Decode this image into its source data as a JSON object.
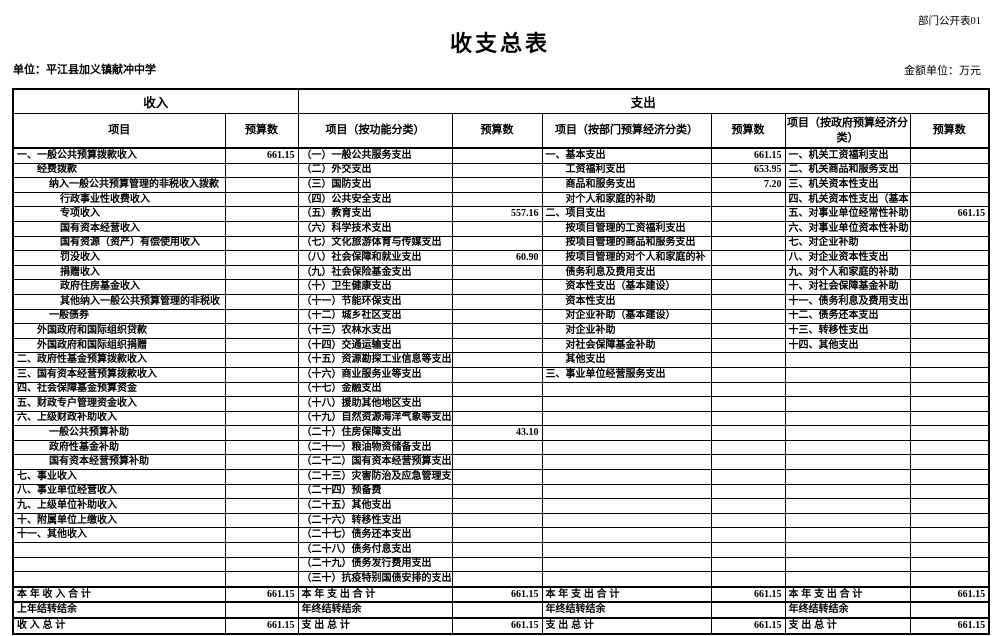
{
  "meta": {
    "doc_label": "部门公开表01",
    "title": "收支总表",
    "unit": "单位：平江县加义镇献冲中学",
    "amount_unit": "金额单位：万元"
  },
  "table": {
    "income_header": "收入",
    "expenditure_header": "支出",
    "col_headers": [
      "项目",
      "预算数",
      "项目（按功能分类）",
      "预算数",
      "项目（按部门预算经济分类）",
      "预算数",
      "项目（按政府预算经济分类）",
      "预算数"
    ],
    "rows": [
      [
        [
          "一、一般公共预算拨款收入",
          0
        ],
        "661.15",
        [
          "（一）一般公共服务支出",
          0
        ],
        "",
        [
          "一、基本支出",
          0
        ],
        "661.15",
        [
          "一、机关工资福利支出",
          0
        ],
        ""
      ],
      [
        [
          "经费拨款",
          1
        ],
        "",
        [
          "（二）外交支出",
          0
        ],
        "",
        [
          "工资福利支出",
          1
        ],
        "653.95",
        [
          "二、机关商品和服务支出",
          0
        ],
        ""
      ],
      [
        [
          "纳入一般公共预算管理的非税收入拨款",
          2
        ],
        "",
        [
          "（三）国防支出",
          0
        ],
        "",
        [
          "商品和服务支出",
          1
        ],
        "7.20",
        [
          "三、机关资本性支出",
          0
        ],
        ""
      ],
      [
        [
          "行政事业性收费收入",
          3
        ],
        "",
        [
          "（四）公共安全支出",
          0
        ],
        "",
        [
          "对个人和家庭的补助",
          1
        ],
        "",
        [
          "四、机关资本性支出（基本",
          0
        ],
        ""
      ],
      [
        [
          "专项收入",
          3
        ],
        "",
        [
          "（五）教育支出",
          0
        ],
        "557.16",
        [
          "二、项目支出",
          0
        ],
        "",
        [
          "五、对事业单位经常性补助",
          0
        ],
        "661.15"
      ],
      [
        [
          "国有资本经营收入",
          3
        ],
        "",
        [
          "（六）科学技术支出",
          0
        ],
        "",
        [
          "按项目管理的工资福利支出",
          1
        ],
        "",
        [
          "六、对事业单位资本性补助",
          0
        ],
        ""
      ],
      [
        [
          "国有资源（资产）有偿使用收入",
          3
        ],
        "",
        [
          "（七）文化旅游体育与传媒支出",
          0
        ],
        "",
        [
          "按项目管理的商品和服务支出",
          1
        ],
        "",
        [
          "七、对企业补助",
          0
        ],
        ""
      ],
      [
        [
          "罚没收入",
          3
        ],
        "",
        [
          "（八）社会保障和就业支出",
          0
        ],
        "60.90",
        [
          "按项目管理的对个人和家庭的补",
          1
        ],
        "",
        [
          "八、对企业资本性支出",
          0
        ],
        ""
      ],
      [
        [
          "捐赠收入",
          3
        ],
        "",
        [
          "（九）社会保险基金支出",
          0
        ],
        "",
        [
          "债务利息及费用支出",
          1
        ],
        "",
        [
          "九、对个人和家庭的补助",
          0
        ],
        ""
      ],
      [
        [
          "政府住房基金收入",
          3
        ],
        "",
        [
          "（十）卫生健康支出",
          0
        ],
        "",
        [
          "资本性支出（基本建设）",
          1
        ],
        "",
        [
          "十、对社会保障基金补助",
          0
        ],
        ""
      ],
      [
        [
          "其他纳入一般公共预算管理的非税收",
          3
        ],
        "",
        [
          "（十一）节能环保支出",
          0
        ],
        "",
        [
          "资本性支出",
          1
        ],
        "",
        [
          "十一、债务利息及费用支出",
          0
        ],
        ""
      ],
      [
        [
          "一般债券",
          2
        ],
        "",
        [
          "（十二）城乡社区支出",
          0
        ],
        "",
        [
          "对企业补助（基本建设）",
          1
        ],
        "",
        [
          "十二、债务还本支出",
          0
        ],
        ""
      ],
      [
        [
          "外国政府和国际组织贷款",
          1
        ],
        "",
        [
          "（十三）农林水支出",
          0
        ],
        "",
        [
          "对企业补助",
          1
        ],
        "",
        [
          "十三、转移性支出",
          0
        ],
        ""
      ],
      [
        [
          "外国政府和国际组织捐赠",
          1
        ],
        "",
        [
          "（十四）交通运输支出",
          0
        ],
        "",
        [
          "对社会保障基金补助",
          1
        ],
        "",
        [
          "十四、其他支出",
          0
        ],
        ""
      ],
      [
        [
          "二、政府性基金预算拨款收入",
          0
        ],
        "",
        [
          "（十五）资源勘探工业信息等支出",
          0
        ],
        "",
        [
          "其他支出",
          1
        ],
        "",
        null,
        ""
      ],
      [
        [
          "三、国有资本经营预算拨款收入",
          0
        ],
        "",
        [
          "（十六）商业服务业等支出",
          0
        ],
        "",
        [
          "三、事业单位经营服务支出",
          0
        ],
        "",
        null,
        ""
      ],
      [
        [
          "四、社会保障基金预算资金",
          0
        ],
        "",
        [
          "（十七）金融支出",
          0
        ],
        "",
        null,
        "",
        null,
        ""
      ],
      [
        [
          "五、财政专户管理资金收入",
          0
        ],
        "",
        [
          "（十八）援助其他地区支出",
          0
        ],
        "",
        null,
        "",
        null,
        ""
      ],
      [
        [
          "六、上级财政补助收入",
          0
        ],
        "",
        [
          "（十九）自然资源海洋气象等支出",
          0
        ],
        "",
        null,
        "",
        null,
        ""
      ],
      [
        [
          "一般公共预算补助",
          2
        ],
        "",
        [
          "（二十）住房保障支出",
          0
        ],
        "43.10",
        null,
        "",
        null,
        ""
      ],
      [
        [
          "政府性基金补助",
          2
        ],
        "",
        [
          "（二十一）粮油物资储备支出",
          0
        ],
        "",
        null,
        "",
        null,
        ""
      ],
      [
        [
          "国有资本经营预算补助",
          2
        ],
        "",
        [
          "（二十二）国有资本经营预算支出",
          0
        ],
        "",
        null,
        "",
        null,
        ""
      ],
      [
        [
          "七、事业收入",
          0
        ],
        "",
        [
          "（二十三）灾害防治及应急管理支",
          0
        ],
        "",
        null,
        "",
        null,
        ""
      ],
      [
        [
          "八、事业单位经营收入",
          0
        ],
        "",
        [
          "（二十四）预备费",
          0
        ],
        "",
        null,
        "",
        null,
        ""
      ],
      [
        [
          "九、上级单位补助收入",
          0
        ],
        "",
        [
          "（二十五）其他支出",
          0
        ],
        "",
        null,
        "",
        null,
        ""
      ],
      [
        [
          "十、附属单位上缴收入",
          0
        ],
        "",
        [
          "（二十六）转移性支出",
          0
        ],
        "",
        null,
        "",
        null,
        ""
      ],
      [
        [
          "十一、其他收入",
          0
        ],
        "",
        [
          "（二十七）债务还本支出",
          0
        ],
        "",
        null,
        "",
        null,
        ""
      ],
      [
        null,
        "",
        [
          "（二十八）债务付息支出",
          0
        ],
        "",
        null,
        "",
        null,
        ""
      ],
      [
        null,
        "",
        [
          "（二十九）债务发行费用支出",
          0
        ],
        "",
        null,
        "",
        null,
        ""
      ],
      [
        null,
        "",
        [
          "（三十）抗疫特别国债安排的支出",
          0
        ],
        "",
        null,
        "",
        null,
        ""
      ],
      [
        [
          "本 年 收 入 合 计",
          0
        ],
        "661.15",
        [
          "本 年 支 出 合 计",
          0
        ],
        "661.15",
        [
          "本 年 支 出 合 计",
          0
        ],
        "661.15",
        [
          "本 年 支 出 合 计",
          0
        ],
        "661.15"
      ],
      [
        [
          "上年结转结余",
          0
        ],
        "",
        [
          "年终结转结余",
          0
        ],
        "",
        [
          "年终结转结余",
          0
        ],
        "",
        [
          "年终结转结余",
          0
        ],
        ""
      ],
      [
        [
          "收 入 总 计",
          0
        ],
        "661.15",
        [
          "支 出 总 计",
          0
        ],
        "661.15",
        [
          "支 出 总 计",
          0
        ],
        "661.15",
        [
          "支 出 总 计",
          0
        ],
        "661.15"
      ]
    ]
  }
}
